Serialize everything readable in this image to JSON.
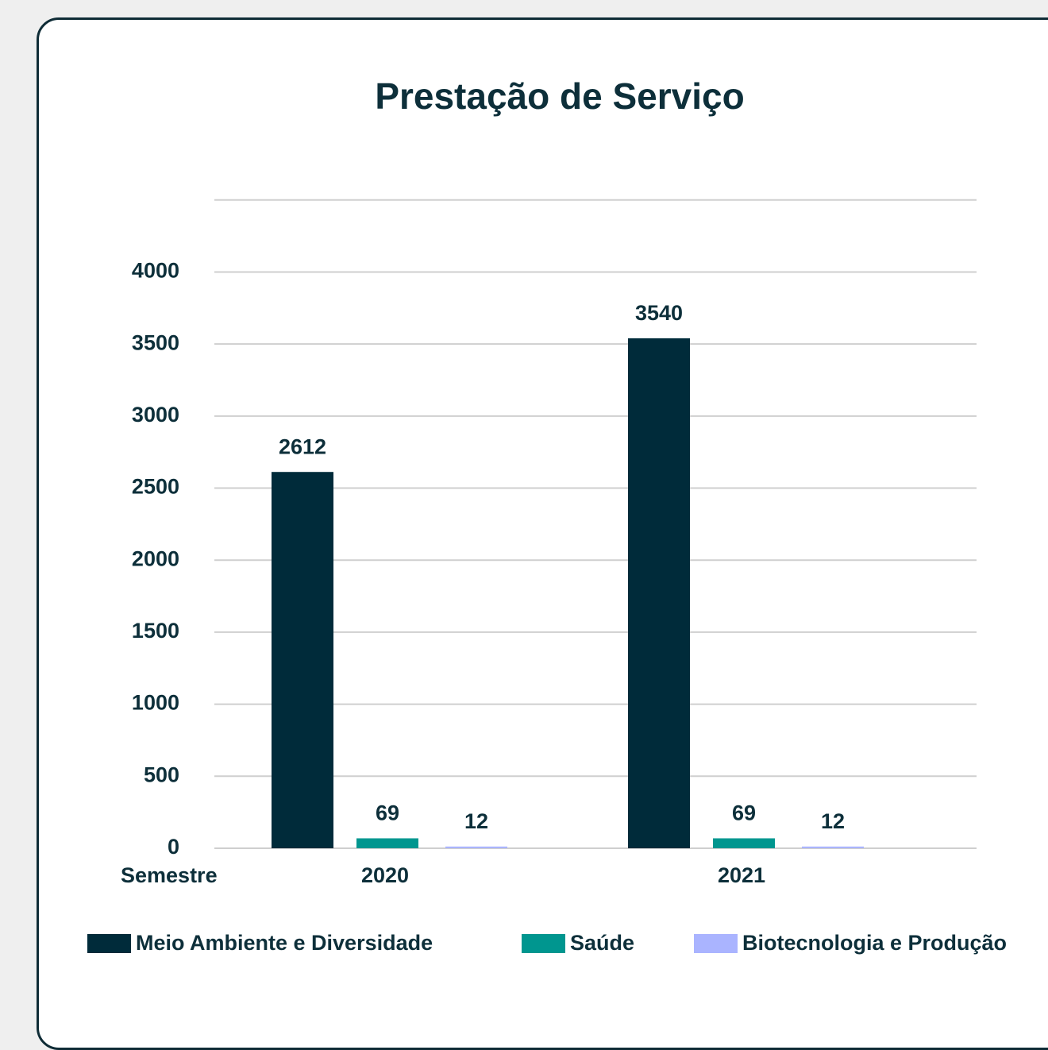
{
  "chart_data": {
    "type": "bar",
    "title": "Prestação de Serviço",
    "x_label": "Semestre",
    "categories": [
      "2020",
      "2021"
    ],
    "series": [
      {
        "name": "Meio Ambiente e Diversidade",
        "color": "#002b3a",
        "values": [
          2612,
          3540
        ]
      },
      {
        "name": "Saúde",
        "color": "#00968f",
        "values": [
          69,
          69
        ]
      },
      {
        "name": "Biotecnologia e Produção",
        "color": "#aab4ff",
        "values": [
          12,
          12
        ]
      }
    ],
    "ylim": [
      0,
      4500
    ],
    "yticks": [
      0,
      500,
      1000,
      1500,
      2000,
      2500,
      3000,
      3500,
      4000
    ],
    "grid": true,
    "legend": "bottom"
  }
}
